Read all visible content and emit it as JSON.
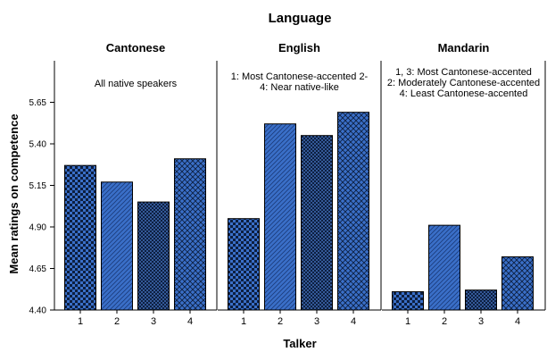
{
  "chart_data": {
    "type": "bar",
    "title": "Language",
    "xlabel": "Talker",
    "ylabel": "Mean ratings on competence",
    "ylim": [
      4.4,
      5.9
    ],
    "yticks": [
      "4.40",
      "4.65",
      "4.90",
      "5.15",
      "5.40",
      "5.65"
    ],
    "ytick_values": [
      4.4,
      4.65,
      4.9,
      5.15,
      5.4,
      5.65
    ],
    "categories": [
      "1",
      "2",
      "3",
      "4"
    ],
    "bar_fill": "#3a6fc8",
    "bar_patterns": [
      "checker",
      "diagonal",
      "dots",
      "crosshatch"
    ],
    "panels": [
      {
        "name": "Cantonese",
        "annotation": [
          "All native speakers"
        ],
        "values": [
          5.27,
          5.17,
          5.05,
          5.31
        ]
      },
      {
        "name": "English",
        "annotation": [
          "1: Most Cantonese-accented 2-",
          "4: Near native-like"
        ],
        "values": [
          4.95,
          5.52,
          5.45,
          5.59
        ]
      },
      {
        "name": "Mandarin",
        "annotation": [
          "1, 3: Most Cantonese-accented",
          "2: Moderately Cantonese-accented",
          "4: Least Cantonese-accented"
        ],
        "values": [
          4.51,
          4.91,
          4.52,
          4.72
        ]
      }
    ]
  }
}
